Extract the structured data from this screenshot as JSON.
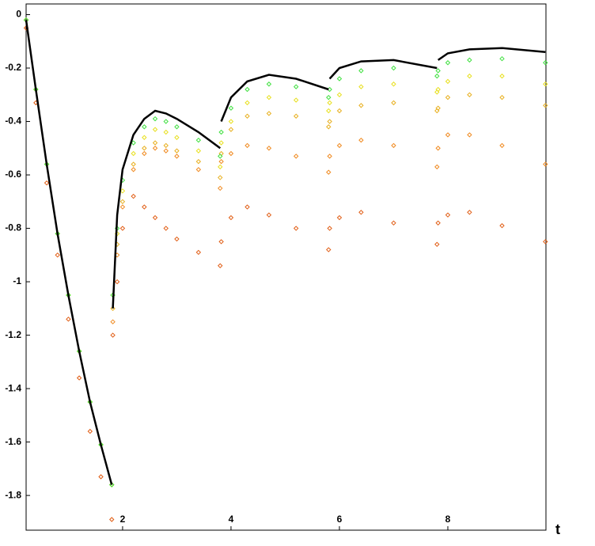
{
  "chart_data": {
    "type": "line",
    "x_label": "t",
    "x": [
      0.22,
      0.4,
      0.6,
      0.8,
      1.0,
      1.2,
      1.4,
      1.6,
      1.8,
      1.81,
      1.82,
      1.9,
      2.0,
      2.2,
      2.4,
      2.6,
      2.8,
      3.0,
      3.4,
      3.8,
      3.81,
      3.82,
      4.0,
      4.3,
      4.7,
      5.2,
      5.8,
      5.81,
      5.82,
      6.0,
      6.4,
      7.0,
      7.8,
      7.81,
      7.82,
      8.0,
      8.4,
      9.0,
      9.8
    ],
    "xlim": [
      0.22,
      9.81
    ],
    "xticks": [
      2,
      4,
      6,
      8
    ],
    "ylim": [
      -1.93,
      0.04
    ],
    "yticks": [
      0,
      -0.2,
      -0.4,
      -0.6,
      -0.8,
      -1,
      -1.2,
      -1.4,
      -1.6,
      -1.8
    ],
    "series": [
      {
        "color": "#e05a10",
        "style": "diamond",
        "values": [
          -0.05,
          -0.33,
          -0.63,
          -0.9,
          -1.14,
          -1.36,
          -1.56,
          -1.73,
          -1.89,
          null,
          -1.2,
          -1.0,
          -0.8,
          -0.68,
          -0.72,
          -0.76,
          -0.8,
          -0.84,
          -0.89,
          -0.94,
          null,
          -0.85,
          -0.76,
          -0.72,
          -0.75,
          -0.8,
          -0.88,
          null,
          -0.8,
          -0.76,
          -0.74,
          -0.78,
          -0.86,
          null,
          -0.78,
          -0.75,
          -0.74,
          -0.79,
          -0.85
        ]
      },
      {
        "color": "#f08a20",
        "style": "diamond",
        "values": [
          -0.02,
          -0.28,
          -0.56,
          -0.82,
          -1.05,
          -1.26,
          -1.45,
          -1.61,
          -1.76,
          null,
          -1.15,
          -0.9,
          -0.72,
          -0.58,
          -0.52,
          -0.5,
          -0.51,
          -0.53,
          -0.58,
          -0.65,
          null,
          -0.55,
          -0.52,
          -0.49,
          -0.5,
          -0.53,
          -0.59,
          null,
          -0.53,
          -0.49,
          -0.47,
          -0.49,
          -0.57,
          null,
          -0.5,
          -0.45,
          -0.45,
          -0.49,
          -0.56
        ]
      },
      {
        "color": "#e8b020",
        "style": "diamond",
        "values": [
          -0.02,
          -0.28,
          -0.56,
          -0.82,
          -1.05,
          -1.26,
          -1.45,
          -1.61,
          -1.76,
          null,
          -1.1,
          -0.86,
          -0.7,
          -0.56,
          -0.5,
          -0.48,
          -0.49,
          -0.51,
          -0.55,
          -0.61,
          null,
          -0.52,
          -0.43,
          -0.38,
          -0.37,
          -0.38,
          -0.42,
          null,
          -0.4,
          -0.36,
          -0.34,
          -0.33,
          -0.36,
          null,
          -0.35,
          -0.31,
          -0.3,
          -0.31,
          -0.34
        ]
      },
      {
        "color": "#e8e020",
        "style": "diamond",
        "values": [
          -0.02,
          -0.28,
          -0.56,
          -0.82,
          -1.05,
          -1.26,
          -1.45,
          -1.61,
          -1.76,
          null,
          -1.05,
          -0.82,
          -0.66,
          -0.52,
          -0.46,
          -0.43,
          -0.44,
          -0.46,
          -0.51,
          -0.57,
          null,
          -0.48,
          -0.4,
          -0.33,
          -0.31,
          -0.32,
          -0.36,
          null,
          -0.33,
          -0.3,
          -0.27,
          -0.26,
          -0.29,
          null,
          -0.28,
          -0.25,
          -0.23,
          -0.23,
          -0.26
        ]
      },
      {
        "color": "#40e040",
        "style": "diamond",
        "values": [
          -0.02,
          -0.28,
          -0.56,
          -0.82,
          -1.05,
          -1.26,
          -1.45,
          -1.61,
          -1.76,
          null,
          -1.05,
          -0.8,
          -0.62,
          -0.48,
          -0.42,
          -0.39,
          -0.4,
          -0.42,
          -0.47,
          -0.53,
          null,
          -0.44,
          -0.35,
          -0.28,
          -0.26,
          -0.27,
          -0.31,
          null,
          -0.28,
          -0.24,
          -0.21,
          -0.2,
          -0.23,
          null,
          -0.21,
          -0.18,
          -0.17,
          -0.165,
          -0.18
        ]
      },
      {
        "color": "#000000",
        "style": "line",
        "values": [
          -0.02,
          -0.28,
          -0.56,
          -0.82,
          -1.05,
          -1.26,
          -1.45,
          -1.61,
          -1.76,
          null,
          -1.1,
          -0.75,
          -0.58,
          -0.45,
          -0.39,
          -0.36,
          -0.37,
          -0.39,
          -0.44,
          -0.5,
          null,
          -0.4,
          -0.31,
          -0.25,
          -0.225,
          -0.24,
          -0.28,
          null,
          -0.24,
          -0.2,
          -0.175,
          -0.17,
          -0.2,
          null,
          -0.17,
          -0.145,
          -0.13,
          -0.125,
          -0.14
        ]
      }
    ]
  }
}
